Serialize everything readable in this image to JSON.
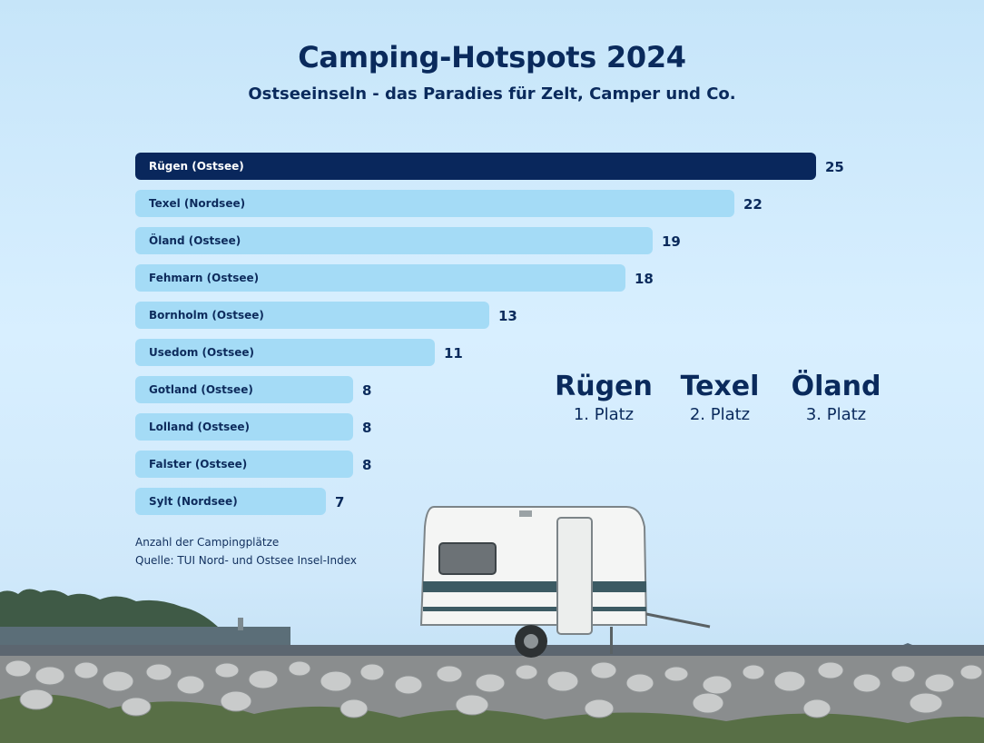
{
  "header": {
    "title": "Camping-Hotspots 2024",
    "subtitle": "Ostseeinseln - das Paradies für Zelt, Camper und Co."
  },
  "chart_data": {
    "type": "bar",
    "orientation": "horizontal",
    "categories": [
      "Rügen (Ostsee)",
      "Texel (Nordsee)",
      "Öland (Ostsee)",
      "Fehmarn (Ostsee)",
      "Bornholm (Ostsee)",
      "Usedom (Ostsee)",
      "Gotland (Ostsee)",
      "Lolland (Ostsee)",
      "Falster (Ostsee)",
      "Sylt (Nordsee)"
    ],
    "values": [
      25,
      22,
      19,
      18,
      13,
      11,
      8,
      8,
      8,
      7
    ],
    "xlim": [
      0,
      25
    ],
    "grid": false,
    "highlight_color": "#09275c",
    "bar_color": "#a4dbf6",
    "label_color_highlight": "#ffffff",
    "label_color": "#0d2b5c"
  },
  "notes": {
    "measure": "Anzahl der Campingplätze",
    "source": "Quelle: TUI Nord- und Ostsee Insel-Index"
  },
  "ranking": [
    {
      "name": "Rügen",
      "place": "1. Platz"
    },
    {
      "name": "Texel",
      "place": "2. Platz"
    },
    {
      "name": "Öland",
      "place": "3. Platz"
    }
  ]
}
